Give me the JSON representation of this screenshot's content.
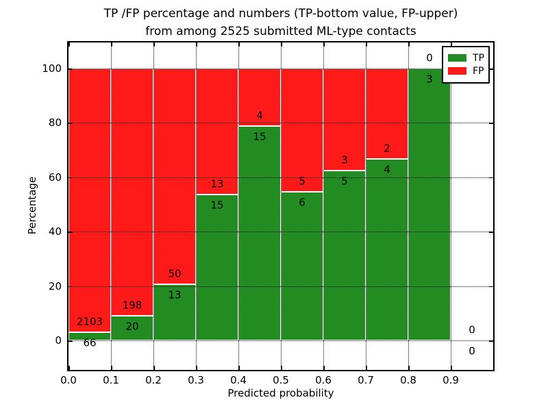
{
  "title": {
    "line1": "TP /FP percentage and numbers (TP-bottom value, FP-upper)",
    "line2": "from among 2525 submitted ML-type contacts"
  },
  "chart_data": {
    "type": "bar",
    "stacked": true,
    "normalized_to_percent": true,
    "title": "TP /FP percentage and numbers (TP-bottom value, FP-upper) from among 2525 submitted ML-type contacts",
    "xlabel": "Predicted probability",
    "ylabel": "Percentage",
    "total_contacts": 2525,
    "bin_start": [
      0.0,
      0.1,
      0.2,
      0.3,
      0.4,
      0.5,
      0.6,
      0.7,
      0.8,
      0.9
    ],
    "bin_width": 0.1,
    "series": [
      {
        "name": "TP",
        "color": "#228b22",
        "counts": [
          66,
          20,
          13,
          15,
          15,
          6,
          5,
          4,
          3,
          0
        ]
      },
      {
        "name": "FP",
        "color": "#ff1a1a",
        "counts": [
          2103,
          198,
          50,
          13,
          4,
          5,
          3,
          2,
          0,
          0
        ]
      }
    ],
    "xticks": [
      "0.0",
      "0.1",
      "0.2",
      "0.3",
      "0.4",
      "0.5",
      "0.6",
      "0.7",
      "0.8",
      "0.9"
    ],
    "yticks": [
      0,
      20,
      40,
      60,
      80,
      100
    ],
    "xlim": [
      0.0,
      1.0
    ],
    "ylim": [
      -11,
      110
    ],
    "grid": true,
    "grid_style": "dotted",
    "legend_position": "upper right"
  },
  "legend": {
    "items": [
      {
        "label": "TP",
        "color": "#228b22"
      },
      {
        "label": "FP",
        "color": "#ff1a1a"
      }
    ]
  }
}
